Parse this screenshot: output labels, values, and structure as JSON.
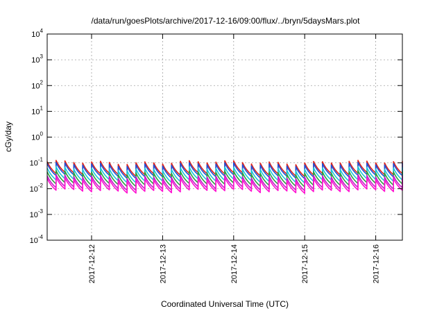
{
  "chart_data": {
    "type": "line",
    "title": "/data/run/goesPlots/archive/2017-12-16/09:00/flux/../bryn/5daysMars.plot",
    "xlabel": "Coordinated Universal Time (UTC)",
    "ylabel": "cGy/day",
    "yscale": "log",
    "ylim": [
      0.0001,
      10000
    ],
    "y_ticks": [
      {
        "value": 0.0001,
        "base": "10",
        "exp": "-4"
      },
      {
        "value": 0.001,
        "base": "10",
        "exp": "-3"
      },
      {
        "value": 0.01,
        "base": "10",
        "exp": "-2"
      },
      {
        "value": 0.1,
        "base": "10",
        "exp": "-1"
      },
      {
        "value": 1,
        "base": "10",
        "exp": "0"
      },
      {
        "value": 10,
        "base": "10",
        "exp": "1"
      },
      {
        "value": 100,
        "base": "10",
        "exp": "2"
      },
      {
        "value": 1000,
        "base": "10",
        "exp": "3"
      },
      {
        "value": 10000,
        "base": "10",
        "exp": "4"
      }
    ],
    "xlim": [
      "2017-12-11 09:00",
      "2017-12-16 09:00"
    ],
    "x_ticks": [
      "2017-12-12",
      "2017-12-13",
      "2017-12-14",
      "2017-12-15",
      "2017-12-16"
    ],
    "grid": true,
    "sawtooth": {
      "period_hours": 3,
      "peak_multiplier": 1.75,
      "trough_multiplier": 0.6
    },
    "series": [
      {
        "color": "#e0241c",
        "baseline": 0.06
      },
      {
        "color": "#1f4fd6",
        "baseline": 0.05
      },
      {
        "color": "#18c8d8",
        "baseline": 0.034
      },
      {
        "color": "#2aa040",
        "baseline": 0.024
      },
      {
        "color": "#c020c8",
        "baseline": 0.017
      },
      {
        "color": "#ff10d0",
        "baseline": 0.0135
      }
    ]
  }
}
